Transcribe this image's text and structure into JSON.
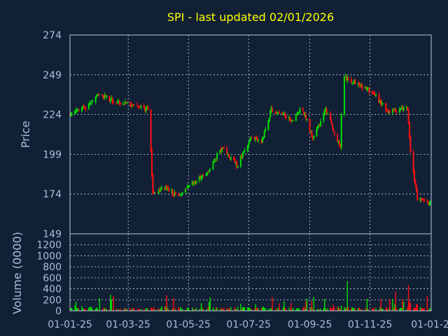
{
  "chart_data": [
    {
      "panel": "price",
      "type": "candlestick",
      "title": "SPI - last updated 02/01/2026",
      "ylabel": "Price",
      "ylim": [
        149,
        274
      ],
      "yticks": [
        "274",
        "249",
        "224",
        "199",
        "174",
        "149"
      ],
      "grid": true,
      "up_color": "#00e000",
      "down_color": "#ff1010",
      "background": "#112035",
      "segments": [
        {
          "from": "2025-01-01",
          "to": "2025-01-20",
          "start": 224.5,
          "end": 229.0,
          "vol": 0.8
        },
        {
          "from": "2025-01-20",
          "to": "2025-02-01",
          "start": 229.0,
          "end": 237.0,
          "vol": 1.5
        },
        {
          "from": "2025-02-01",
          "to": "2025-02-15",
          "start": 237.0,
          "end": 232.5,
          "vol": 1.2
        },
        {
          "from": "2025-02-15",
          "to": "2025-03-22",
          "start": 232.5,
          "end": 227.0,
          "vol": 0.8
        },
        {
          "from": "2025-03-22",
          "to": "2025-03-24",
          "start": 227.0,
          "end": 213.0,
          "vol": 3.5
        },
        {
          "from": "2025-03-24",
          "to": "2025-03-27",
          "start": 213.0,
          "end": 174.0,
          "vol": 3.0
        },
        {
          "from": "2025-03-27",
          "to": "2025-04-10",
          "start": 174.0,
          "end": 178.0,
          "vol": 1.5
        },
        {
          "from": "2025-04-10",
          "to": "2025-04-20",
          "start": 178.0,
          "end": 172.5,
          "vol": 1.2
        },
        {
          "from": "2025-04-20",
          "to": "2025-05-05",
          "start": 172.5,
          "end": 181.0,
          "vol": 1.4
        },
        {
          "from": "2025-05-05",
          "to": "2025-05-20",
          "start": 181.0,
          "end": 187.0,
          "vol": 1.0
        },
        {
          "from": "2025-05-20",
          "to": "2025-06-05",
          "start": 187.0,
          "end": 203.0,
          "vol": 1.2
        },
        {
          "from": "2025-06-05",
          "to": "2025-06-20",
          "start": 203.0,
          "end": 192.0,
          "vol": 1.2
        },
        {
          "from": "2025-06-20",
          "to": "2025-07-05",
          "start": 192.0,
          "end": 210.0,
          "vol": 1.5
        },
        {
          "from": "2025-07-05",
          "to": "2025-07-15",
          "start": 210.0,
          "end": 206.0,
          "vol": 1.0
        },
        {
          "from": "2025-07-15",
          "to": "2025-07-25",
          "start": 206.0,
          "end": 227.0,
          "vol": 1.5
        },
        {
          "from": "2025-07-25",
          "to": "2025-08-15",
          "start": 227.0,
          "end": 221.0,
          "vol": 1.2
        },
        {
          "from": "2025-08-15",
          "to": "2025-08-25",
          "start": 221.0,
          "end": 229.0,
          "vol": 1.0
        },
        {
          "from": "2025-08-25",
          "to": "2025-09-05",
          "start": 229.0,
          "end": 209.0,
          "vol": 1.4
        },
        {
          "from": "2025-09-05",
          "to": "2025-09-18",
          "start": 209.0,
          "end": 227.0,
          "vol": 1.2
        },
        {
          "from": "2025-09-18",
          "to": "2025-10-03",
          "start": 227.0,
          "end": 203.0,
          "vol": 1.5
        },
        {
          "from": "2025-10-03",
          "to": "2025-10-05",
          "start": 203.0,
          "end": 248.0,
          "vol": 5.0
        },
        {
          "from": "2025-10-05",
          "to": "2025-10-20",
          "start": 248.0,
          "end": 243.0,
          "vol": 1.5
        },
        {
          "from": "2025-10-20",
          "to": "2025-11-05",
          "start": 243.0,
          "end": 238.0,
          "vol": 1.2
        },
        {
          "from": "2025-11-05",
          "to": "2025-11-20",
          "start": 238.0,
          "end": 226.0,
          "vol": 1.2
        },
        {
          "from": "2025-11-20",
          "to": "2025-12-10",
          "start": 226.0,
          "end": 228.0,
          "vol": 1.0
        },
        {
          "from": "2025-12-10",
          "to": "2025-12-13",
          "start": 228.0,
          "end": 200.0,
          "vol": 3.5
        },
        {
          "from": "2025-12-13",
          "to": "2025-12-20",
          "start": 200.0,
          "end": 171.0,
          "vol": 2.5
        },
        {
          "from": "2025-12-20",
          "to": "2026-01-02",
          "start": 171.0,
          "end": 168.0,
          "vol": 1.2
        }
      ]
    },
    {
      "panel": "volume",
      "type": "bar",
      "ylabel": "Volume (0000)",
      "ylim": [
        0,
        1400
      ],
      "yticks": [
        "0",
        "200",
        "400",
        "600",
        "800",
        "1000",
        "1200"
      ],
      "grid": true
    }
  ],
  "xaxis": {
    "ticks": [
      "01-01-25",
      "01-03-25",
      "01-05-25",
      "01-07-25",
      "01-09-25",
      "01-11-25",
      "01-01-2"
    ],
    "tick_dates": [
      "2025-01-01",
      "2025-03-01",
      "2025-05-01",
      "2025-07-01",
      "2025-09-01",
      "2025-11-01",
      "2026-01-01"
    ],
    "range": [
      "2025-01-01",
      "2026-01-02"
    ]
  }
}
